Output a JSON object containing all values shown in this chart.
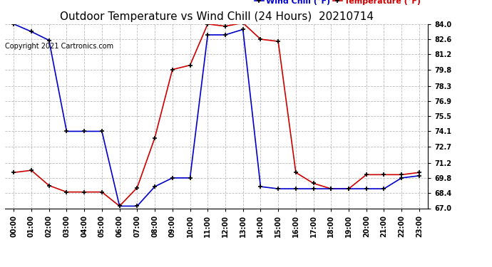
{
  "title": "Outdoor Temperature vs Wind Chill (24 Hours)  20210714",
  "copyright": "Copyright 2021 Cartronics.com",
  "legend_windchill": "Wind Chill (°F)",
  "legend_temp": "Temperature (°F)",
  "hours": [
    0,
    1,
    2,
    3,
    4,
    5,
    6,
    7,
    8,
    9,
    10,
    11,
    12,
    13,
    14,
    15,
    16,
    17,
    18,
    19,
    20,
    21,
    22,
    23
  ],
  "hour_labels": [
    "00:00",
    "01:00",
    "02:00",
    "03:00",
    "04:00",
    "05:00",
    "06:00",
    "07:00",
    "08:00",
    "09:00",
    "10:00",
    "11:00",
    "12:00",
    "13:00",
    "14:00",
    "15:00",
    "16:00",
    "17:00",
    "18:00",
    "19:00",
    "20:00",
    "21:00",
    "22:00",
    "23:00"
  ],
  "temperature": [
    70.3,
    70.5,
    69.1,
    68.5,
    68.5,
    68.5,
    67.2,
    68.9,
    73.5,
    79.8,
    80.2,
    84.0,
    83.8,
    84.1,
    82.6,
    82.4,
    70.3,
    69.3,
    68.8,
    68.8,
    70.1,
    70.1,
    70.1,
    70.3
  ],
  "wind_chill": [
    84.0,
    83.3,
    82.5,
    74.1,
    74.1,
    74.1,
    67.2,
    67.2,
    69.0,
    69.8,
    69.8,
    83.0,
    83.0,
    83.5,
    69.0,
    68.8,
    68.8,
    68.8,
    68.8,
    68.8,
    68.8,
    68.8,
    69.8,
    70.0
  ],
  "ylim": [
    67.0,
    84.0
  ],
  "yticks": [
    67.0,
    68.4,
    69.8,
    71.2,
    72.7,
    74.1,
    75.5,
    76.9,
    78.3,
    79.8,
    81.2,
    82.6,
    84.0
  ],
  "temp_color": "#cc0000",
  "windchill_color": "#0000cc",
  "background_color": "#ffffff",
  "grid_color": "#bbbbbb",
  "title_fontsize": 11,
  "label_fontsize": 7,
  "legend_fontsize": 8,
  "copyright_fontsize": 7
}
